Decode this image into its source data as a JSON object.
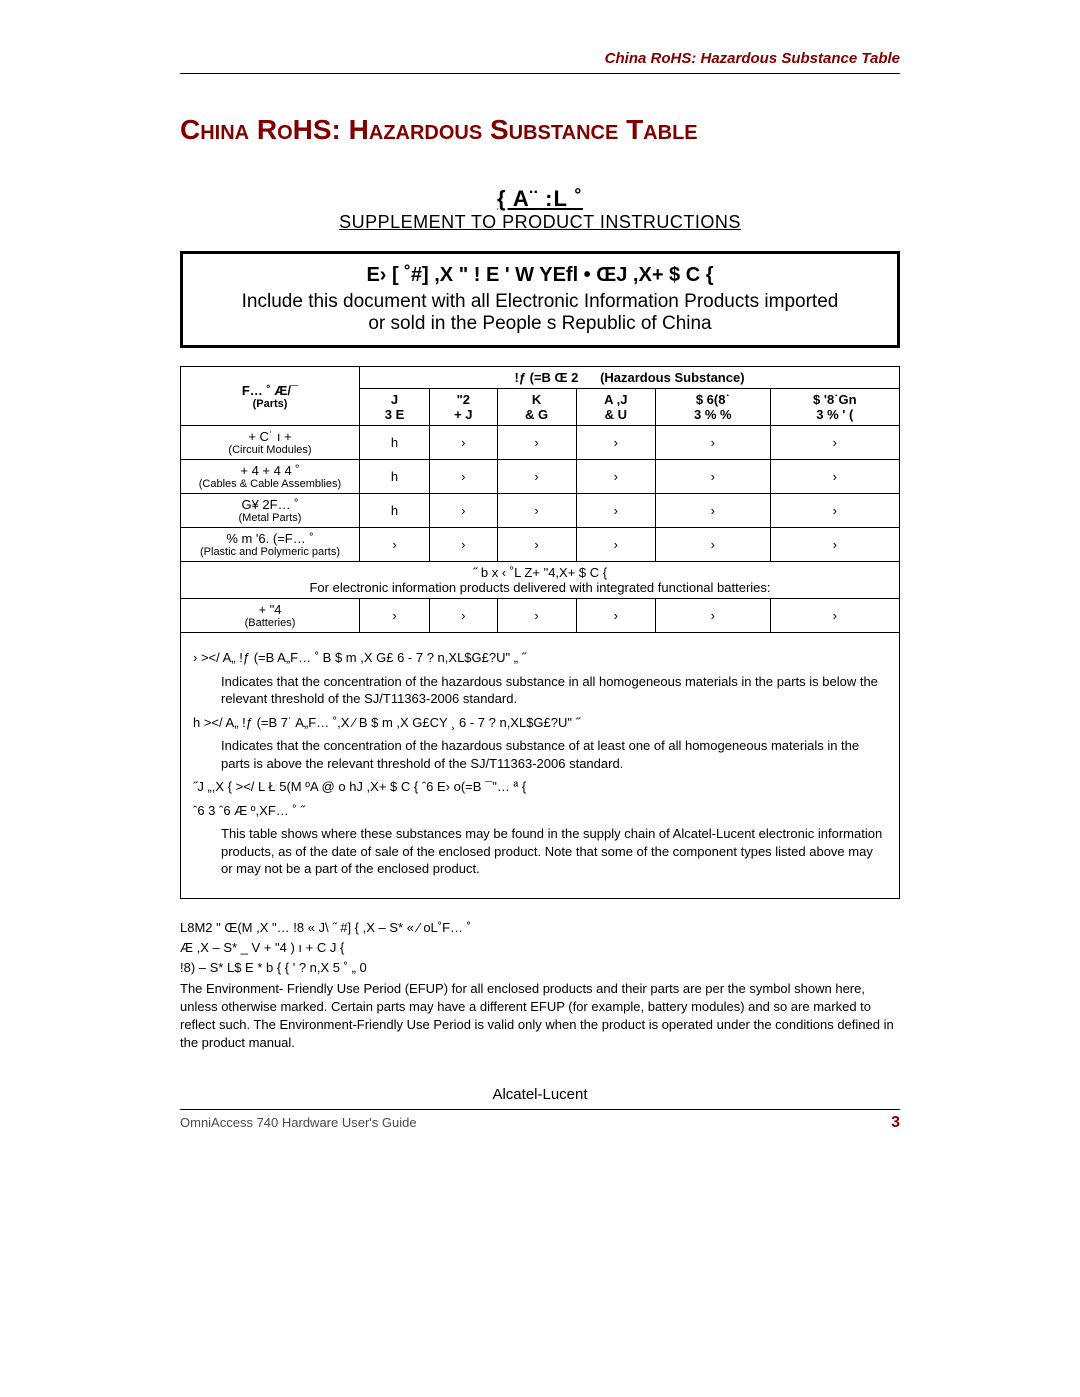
{
  "runningHead": "China RoHS: Hazardous Substance Table",
  "titleMain": "China RoHS: Hazardous Substance Table",
  "supplement": {
    "line1": "{ A¨  :L ˚",
    "line2": "SUPPLEMENT TO PRODUCT INSTRUCTIONS"
  },
  "includeBox": {
    "cn": "E›  [ ˚#]  ,X      \" ! E '  W YEfl • ŒJ  ,X+ $  C {",
    "en1": "Include this document with all Electronic Information Products imported",
    "en2": "or sold in the People s Republic of China"
  },
  "table": {
    "partsHeaderCn": "F… ˚ Æ/¯",
    "partsHeaderEn": "(Parts)",
    "hazHeaderCn": "!ƒ  (=B Œ 2",
    "hazHeaderEn": "(Hazardous Substance)",
    "cols": [
      {
        "cn": "J",
        "sym": "3 E"
      },
      {
        "cn": "\"2",
        "sym": "+ J"
      },
      {
        "cn": "K",
        "sym": "& G"
      },
      {
        "cn": "A ,J",
        "sym": "& U"
      },
      {
        "cn": "$ 6(8˙",
        "sym": "3 % %"
      },
      {
        "cn": "$ '8˙Gn",
        "sym": "3 % ' ("
      }
    ],
    "rows": [
      {
        "cn": "+ C˙ ı +",
        "en": "(Circuit Modules)",
        "vals": [
          "h",
          "›",
          "›",
          "›",
          "›",
          "›"
        ]
      },
      {
        "cn": "+ 4  + 4 4 ˚",
        "en": "(Cables & Cable Assemblies)",
        "vals": [
          "h",
          "›",
          "›",
          "›",
          "›",
          "›"
        ]
      },
      {
        "cn": "G¥ 2F… ˚",
        "en": "(Metal Parts)",
        "vals": [
          "h",
          "›",
          "›",
          "›",
          "›",
          "›"
        ]
      },
      {
        "cn": "% m '6.  (=F… ˚",
        "en": "(Plastic and Polymeric parts)",
        "vals": [
          "›",
          "›",
          "›",
          "›",
          "›",
          "›"
        ]
      }
    ],
    "midNoteCn": "˝ b x ‹ ˚L   Z+ \"4,X+ $  C {",
    "midNoteEn": "For electronic information products delivered with integrated functional batteries:",
    "batteryRow": {
      "cn": "+ \"4",
      "en": "(Batteries)",
      "vals": [
        "›",
        "›",
        "›",
        "›",
        "›",
        "›"
      ]
    }
  },
  "explain": {
    "p1cn": "›      ></ A„  !ƒ  (=B  A„F… ˚  B $ m ,X G£   6 -  7               ? n,XL$G£?U\"  „  ˝",
    "p1en": "Indicates that the concentration of the hazardous substance in all homogeneous materials in the parts is below the relevant threshold of the SJ/T11363-2006 standard.",
    "p2cn": "h     ></ A„  !ƒ  (=B 7˙  A„F… ˚,X ⁄  B $ m ,X G£CY ¸ 6 -  7               ? n,XL$G£?U\"  ˝",
    "p2en": "Indicates that the concentration of the hazardous substance of at least one of all homogeneous materials in the parts is above the relevant threshold of the SJ/T11363-2006 standard.",
    "p3cn": "˝J   „,X   {   ></  L Ł 5(M ºA @  o hJ ,X+ $  C {  ˆ6   E› o(=B ¯\"… ª      {",
    "p3cn2": "ˆ6   3 ˆ6  Æ         º,XF… ˚ ˝",
    "p3en": "This table shows where these substances may be found in the supply chain of Alcatel-Lucent electronic information products, as of the date of sale of the enclosed product.  Note that some of the component types listed above may or may not be a part of the enclosed product."
  },
  "efup": {
    "l1": "L8M2 \" Œ(M  ,X \"…  !8  « J\\ ˝ #]  { ,X  – S*    «   ⁄ oL˚F… ˚",
    "l2": "  Æ  ,X  – S*    _ V  + \"4 )  ı + C   J {",
    "l3": "!8)  – S*  L$  E *  b {     {   '  ? n,X 5 ˚  „ 0",
    "en": "The Environment- Friendly Use Period (EFUP) for all enclosed products and their parts are per the symbol shown here, unless otherwise marked.  Certain parts may have a different EFUP (for example, battery modules) and so are marked to reflect such.  The Environment-Friendly Use Period is valid only when the product is operated under the conditions defined in the product manual."
  },
  "footer": {
    "center": "Alcatel-Lucent",
    "left": "OmniAccess 740 Hardware User's Guide",
    "pageNum": "3"
  },
  "colors": {
    "accent": "#800000",
    "text": "#000000",
    "footerGrey": "#4a4a4a",
    "background": "#ffffff"
  }
}
